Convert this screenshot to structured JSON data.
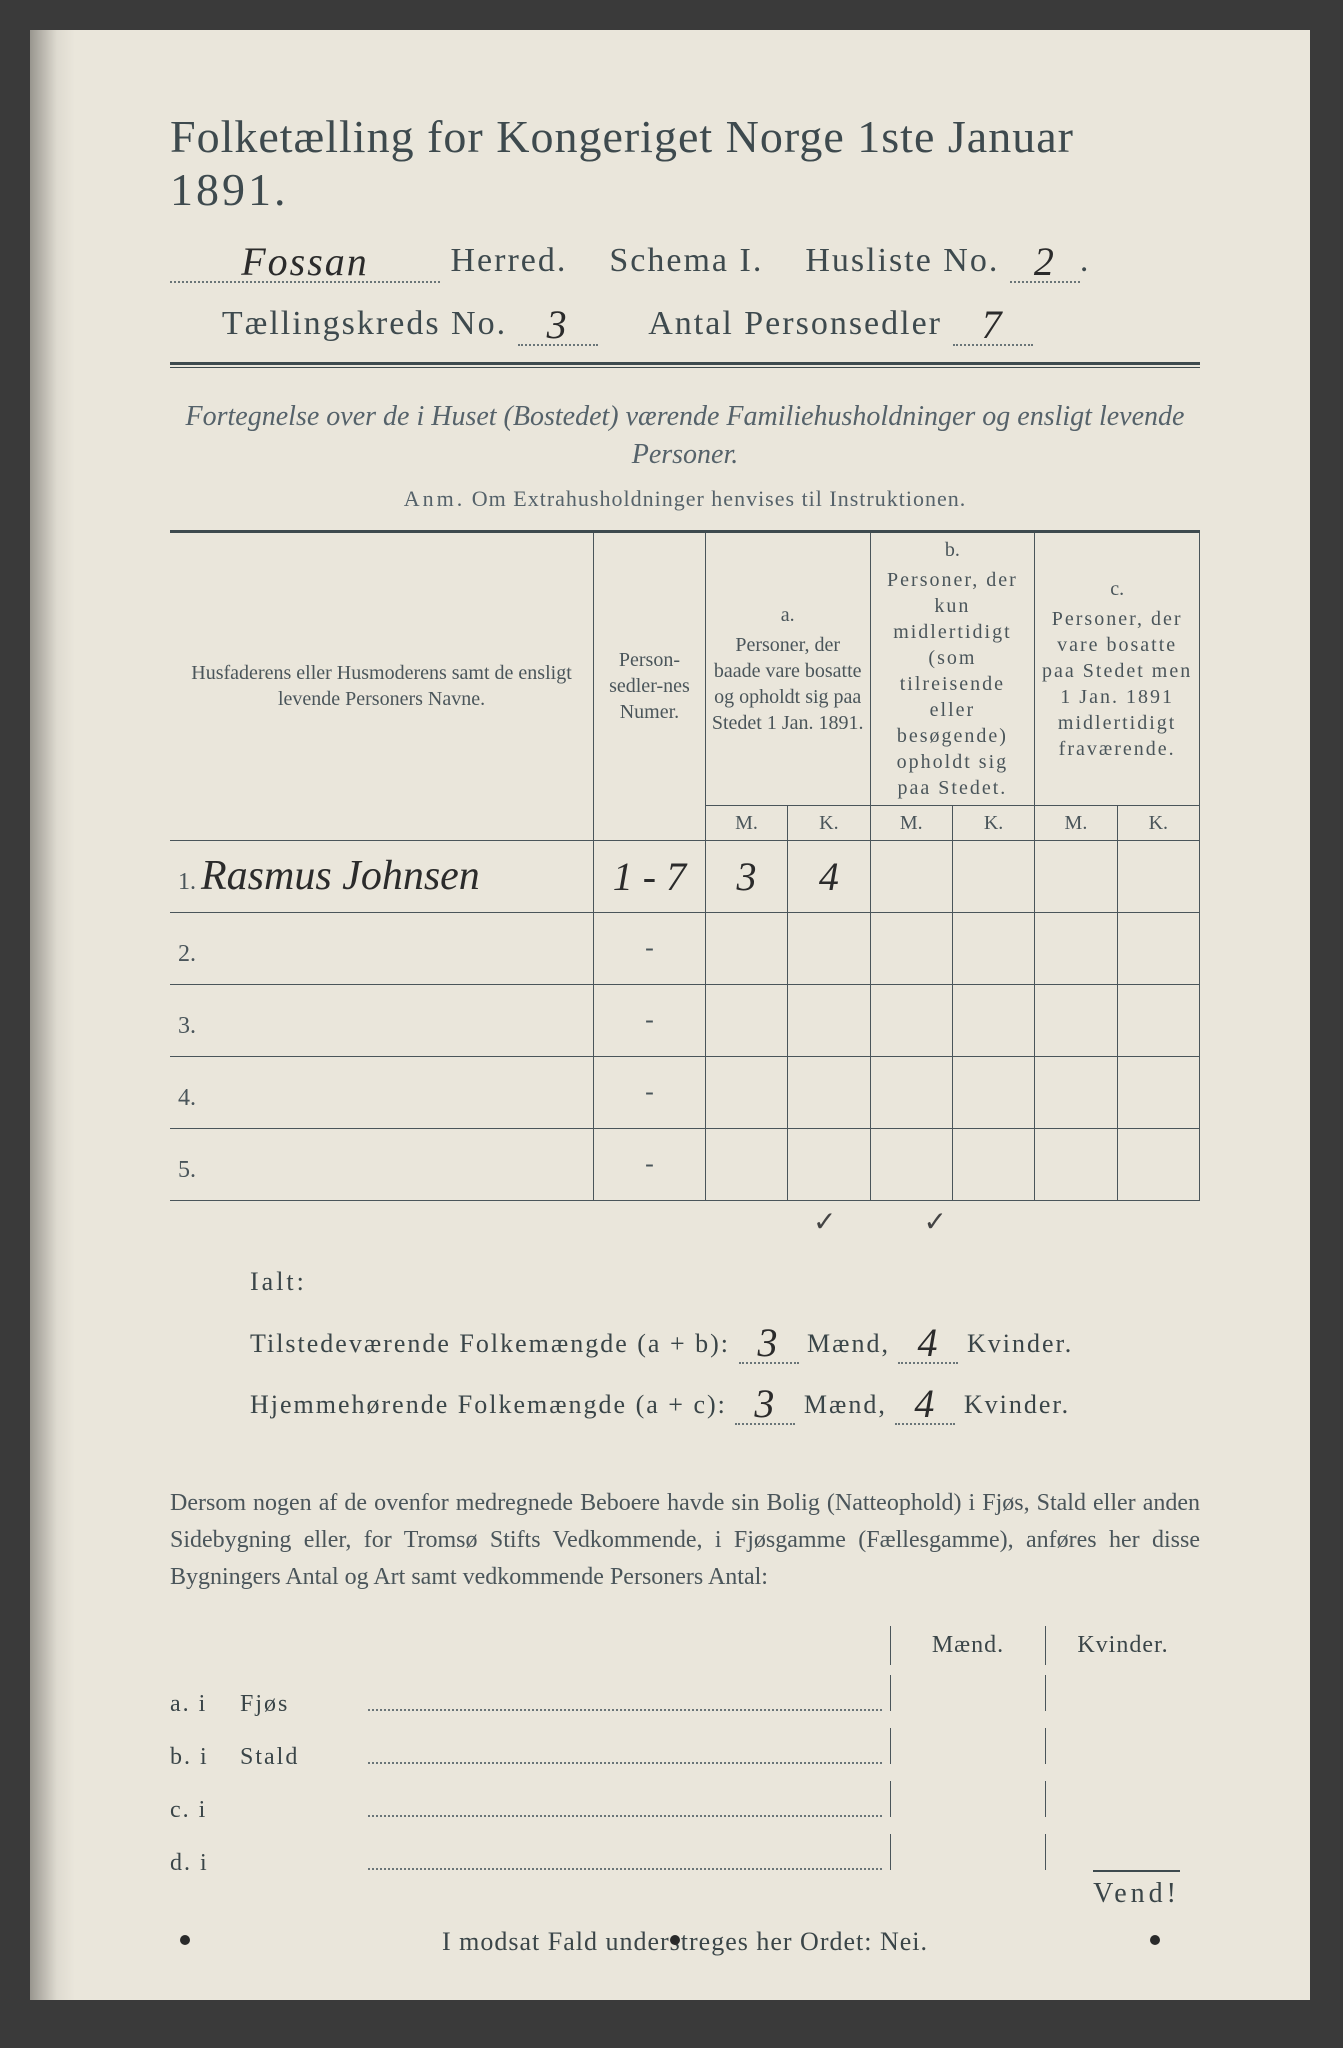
{
  "header": {
    "title_prefix": "Folketælling for Kongeriget Norge ",
    "title_date": "1ste Januar ",
    "title_year": "1891.",
    "herred_value": "Fossan",
    "herred_label": " Herred.",
    "schema_label": "Schema I.",
    "husliste_label": "Husliste No.",
    "husliste_value": "2",
    "kreds_label": "Tællingskreds No.",
    "kreds_value": "3",
    "antal_label": "Antal Personsedler",
    "antal_value": "7"
  },
  "fortegnelse": {
    "line": "Fortegnelse over de i Huset (Bostedet) værende Familiehusholdninger og ensligt levende Personer.",
    "anm_lead": "Anm.",
    "anm_rest": " Om Extrahusholdninger henvises til Instruktionen."
  },
  "table": {
    "head_names": "Husfaderens eller Husmoderens samt de ensligt levende Personers Navne.",
    "head_numer": "Person-sedler-nes Numer.",
    "col_a_label": "a.",
    "col_a_text": "Personer, der baade vare bosatte og opholdt sig paa Stedet 1 Jan. 1891.",
    "col_b_label": "b.",
    "col_b_text": "Personer, der kun midlertidigt (som tilreisende eller besøgende) opholdt sig paa Stedet.",
    "col_c_label": "c.",
    "col_c_text": "Personer, der vare bosatte paa Stedet men 1 Jan. 1891 midlertidigt fraværende.",
    "m_label": "M.",
    "k_label": "K.",
    "rows": [
      {
        "num": "1.",
        "name": "Rasmus Johnsen",
        "numer": "1 - 7",
        "a_m": "3",
        "a_k": "4",
        "b_m": "",
        "b_k": "",
        "c_m": "",
        "c_k": ""
      },
      {
        "num": "2.",
        "name": "",
        "numer": "-",
        "a_m": "",
        "a_k": "",
        "b_m": "",
        "b_k": "",
        "c_m": "",
        "c_k": ""
      },
      {
        "num": "3.",
        "name": "",
        "numer": "-",
        "a_m": "",
        "a_k": "",
        "b_m": "",
        "b_k": "",
        "c_m": "",
        "c_k": ""
      },
      {
        "num": "4.",
        "name": "",
        "numer": "-",
        "a_m": "",
        "a_k": "",
        "b_m": "",
        "b_k": "",
        "c_m": "",
        "c_k": ""
      },
      {
        "num": "5.",
        "name": "",
        "numer": "-",
        "a_m": "",
        "a_k": "",
        "b_m": "",
        "b_k": "",
        "c_m": "",
        "c_k": ""
      }
    ],
    "checkmarks": "✓  ✓"
  },
  "totals": {
    "ialt_label": "Ialt:",
    "line1_label": "Tilstedeværende Folkemængde (a + b):",
    "line1_m": "3",
    "line1_k": "4",
    "line2_label": "Hjemmehørende Folkemængde (a + c):",
    "line2_m": "3",
    "line2_k": "4",
    "maend": " Mænd, ",
    "kvinder": " Kvinder."
  },
  "body_para": "Dersom nogen af de ovenfor medregnede Beboere havde sin Bolig (Natteophold) i Fjøs, Stald eller anden Sidebygning eller, for Tromsø Stifts Vedkommende, i Fjøsgamme (Fællesgamme), anføres her disse Bygningers Antal og Art samt vedkommende Personers Antal:",
  "buildings": {
    "m_header": "Mænd.",
    "k_header": "Kvinder.",
    "rows": [
      {
        "lead": "a.  i",
        "label": "Fjøs"
      },
      {
        "lead": "b.  i",
        "label": "Stald"
      },
      {
        "lead": "c.  i",
        "label": ""
      },
      {
        "lead": "d.  i",
        "label": ""
      }
    ]
  },
  "nei_line": "I modsat Fald understreges her Ordet: Nei.",
  "vend": "Vend!",
  "style": {
    "paper_bg": "#eae6db",
    "ink": "#3e4a4e",
    "hand_ink": "#2b2b2b",
    "rule_color": "#4a555a"
  }
}
